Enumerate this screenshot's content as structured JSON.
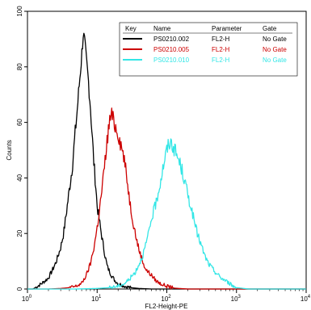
{
  "chart_data": {
    "type": "line",
    "title": "",
    "xlabel": "FL2-Height-PE",
    "ylabel": "Counts",
    "x_scale": "log",
    "xlim": [
      1,
      10000
    ],
    "ylim": [
      0,
      100
    ],
    "x_ticks": [
      {
        "value": 1,
        "base": "10",
        "exp": "0"
      },
      {
        "value": 10,
        "base": "10",
        "exp": "1"
      },
      {
        "value": 100,
        "base": "10",
        "exp": "2"
      },
      {
        "value": 1000,
        "base": "10",
        "exp": "3"
      },
      {
        "value": 10000,
        "base": "10",
        "exp": "4"
      }
    ],
    "y_ticks": [
      {
        "value": 0,
        "label": "0"
      },
      {
        "value": 20,
        "label": "20"
      },
      {
        "value": 40,
        "label": "40"
      },
      {
        "value": 60,
        "label": "60"
      },
      {
        "value": 80,
        "label": "80"
      },
      {
        "value": 100,
        "label": "100"
      }
    ],
    "grid": false,
    "legend": {
      "placement": "top-right",
      "headers": [
        "Key",
        "Name",
        "Parameter",
        "Gate"
      ],
      "rows": [
        {
          "name": "PS0210.002",
          "parameter": "FL2-H",
          "gate": "No Gate",
          "color": "#000000",
          "text_color": "#000000"
        },
        {
          "name": "PS0210.005",
          "parameter": "FL2-H",
          "gate": "No Gate",
          "color": "#cc0000",
          "text_color": "#cc0000"
        },
        {
          "name": "PS0210.010",
          "parameter": "FL2-H",
          "gate": "No Gate",
          "color": "#33e6e6",
          "text_color": "#33e6e6"
        }
      ]
    },
    "series": [
      {
        "color": "#000000",
        "points": [
          [
            1,
            0
          ],
          [
            1.2,
            0
          ],
          [
            1.4,
            1
          ],
          [
            1.6,
            2
          ],
          [
            1.8,
            3
          ],
          [
            2,
            4
          ],
          [
            2.3,
            7
          ],
          [
            2.6,
            10
          ],
          [
            3,
            15
          ],
          [
            3.3,
            20
          ],
          [
            3.6,
            27
          ],
          [
            4,
            36
          ],
          [
            4.4,
            44
          ],
          [
            4.8,
            55
          ],
          [
            5.2,
            65
          ],
          [
            5.6,
            75
          ],
          [
            6,
            84
          ],
          [
            6.3,
            92
          ],
          [
            6.6,
            89
          ],
          [
            7,
            82
          ],
          [
            7.5,
            75
          ],
          [
            8,
            66
          ],
          [
            8.5,
            55
          ],
          [
            9,
            45
          ],
          [
            9.5,
            38
          ],
          [
            10,
            30
          ],
          [
            11,
            23
          ],
          [
            12,
            17
          ],
          [
            13,
            12
          ],
          [
            14,
            8
          ],
          [
            16,
            5
          ],
          [
            18,
            3
          ],
          [
            20,
            2
          ],
          [
            25,
            1
          ],
          [
            30,
            0.5
          ],
          [
            40,
            0.2
          ],
          [
            60,
            0
          ],
          [
            100,
            0
          ]
        ]
      },
      {
        "color": "#cc0000",
        "points": [
          [
            1,
            0
          ],
          [
            2,
            0
          ],
          [
            3,
            0.2
          ],
          [
            4,
            0.5
          ],
          [
            5,
            1
          ],
          [
            6,
            2
          ],
          [
            7,
            5
          ],
          [
            8,
            9
          ],
          [
            9,
            15
          ],
          [
            10,
            22
          ],
          [
            11,
            30
          ],
          [
            12,
            38
          ],
          [
            13,
            46
          ],
          [
            14,
            54
          ],
          [
            15,
            60
          ],
          [
            16,
            63
          ],
          [
            17,
            61
          ],
          [
            18,
            59
          ],
          [
            20,
            56
          ],
          [
            22,
            52
          ],
          [
            24,
            48
          ],
          [
            26,
            42
          ],
          [
            28,
            36
          ],
          [
            30,
            30
          ],
          [
            33,
            24
          ],
          [
            36,
            19
          ],
          [
            40,
            14
          ],
          [
            45,
            10
          ],
          [
            50,
            7
          ],
          [
            60,
            5
          ],
          [
            70,
            3
          ],
          [
            80,
            2
          ],
          [
            100,
            1
          ],
          [
            130,
            0.3
          ],
          [
            200,
            0
          ],
          [
            1000,
            0
          ]
        ]
      },
      {
        "color": "#33e6e6",
        "points": [
          [
            1,
            0
          ],
          [
            5,
            0
          ],
          [
            10,
            0.2
          ],
          [
            15,
            0.5
          ],
          [
            20,
            1
          ],
          [
            25,
            2
          ],
          [
            30,
            4
          ],
          [
            35,
            6
          ],
          [
            40,
            9
          ],
          [
            45,
            12
          ],
          [
            50,
            16
          ],
          [
            55,
            20
          ],
          [
            60,
            25
          ],
          [
            70,
            31
          ],
          [
            80,
            38
          ],
          [
            90,
            45
          ],
          [
            100,
            50
          ],
          [
            110,
            53
          ],
          [
            120,
            52
          ],
          [
            140,
            48
          ],
          [
            160,
            44
          ],
          [
            180,
            39
          ],
          [
            200,
            34
          ],
          [
            230,
            28
          ],
          [
            260,
            22
          ],
          [
            300,
            17
          ],
          [
            350,
            12
          ],
          [
            400,
            9
          ],
          [
            500,
            6
          ],
          [
            600,
            4
          ],
          [
            700,
            3
          ],
          [
            800,
            2
          ],
          [
            900,
            1
          ],
          [
            1000,
            0.5
          ],
          [
            1500,
            0
          ],
          [
            10000,
            0
          ]
        ]
      }
    ]
  }
}
